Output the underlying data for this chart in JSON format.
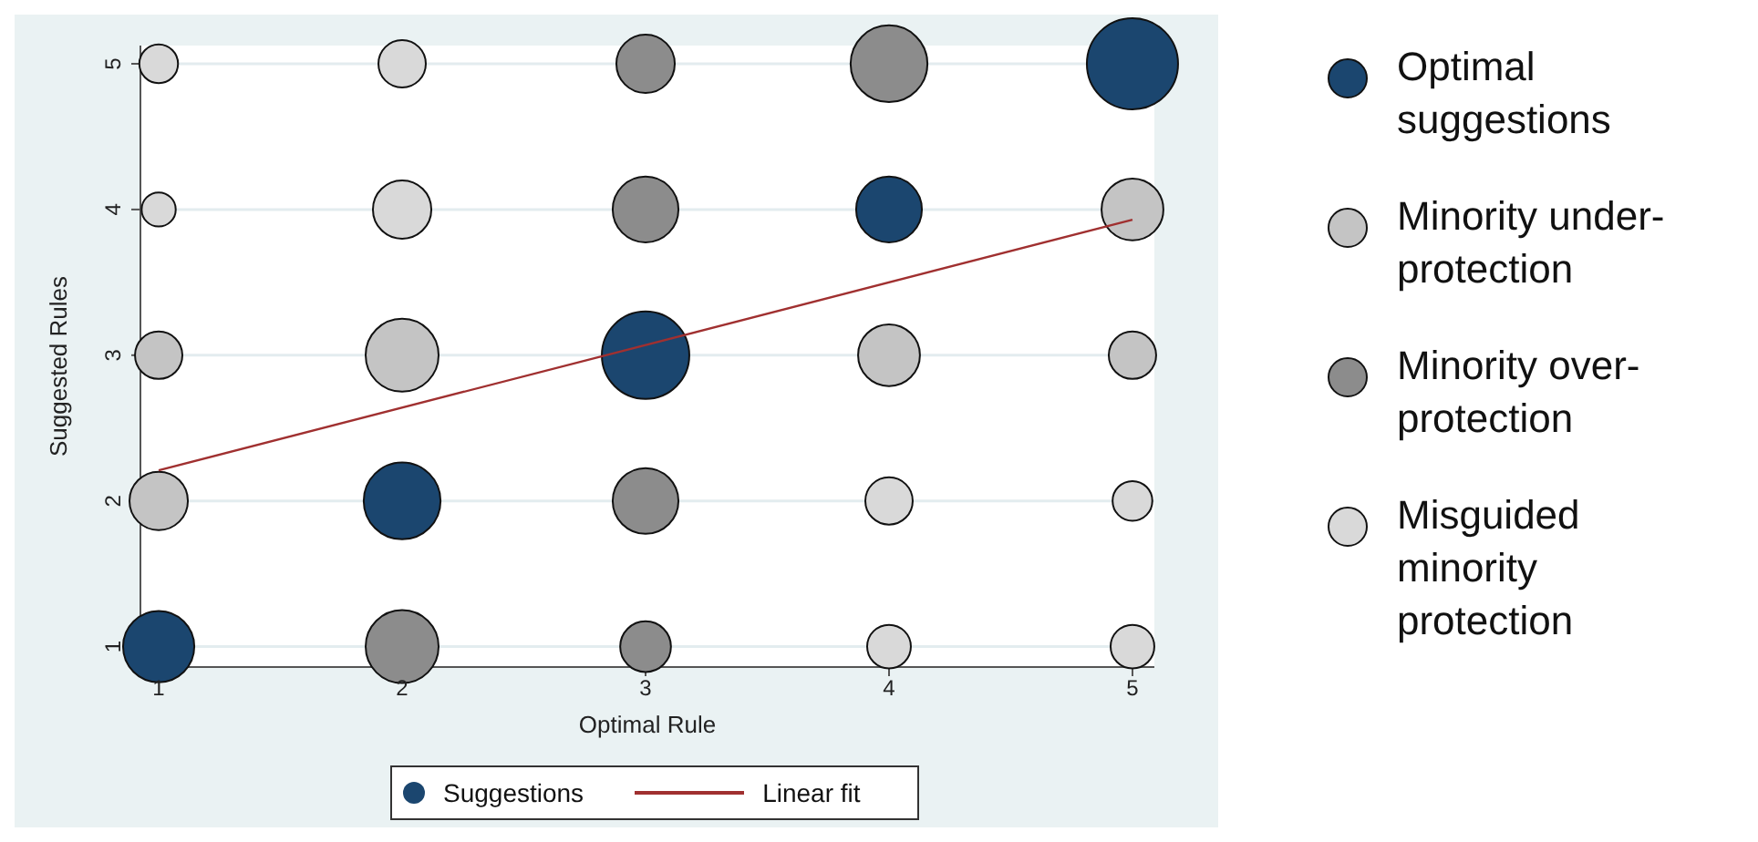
{
  "chart_data": {
    "type": "bubble",
    "xlabel": "Optimal Rule",
    "ylabel": "Suggested Rules",
    "xlim": [
      0.925,
      5.09
    ],
    "ylim": [
      0.86,
      5.125
    ],
    "xticks": [
      1,
      2,
      3,
      4,
      5
    ],
    "yticks": [
      1,
      2,
      3,
      4,
      5
    ],
    "grid": "y",
    "legend": "right",
    "annotations": [
      "Suggestions"
    ],
    "series": [
      {
        "name": "Optimal suggestions",
        "color": "#1b466f",
        "x": [
          1,
          2,
          3,
          4,
          5
        ],
        "values": [
          1,
          2,
          3,
          4,
          5
        ],
        "sizes": [
          0.61,
          0.71,
          0.92,
          0.52,
          1
        ],
        "marker": "circle"
      },
      {
        "name": "Minority under-protection",
        "color": "#c4c4c4",
        "x": [
          1,
          1,
          2,
          4,
          5,
          5
        ],
        "values": [
          2,
          3,
          3,
          3,
          3,
          4
        ],
        "sizes": [
          0.41,
          0.27,
          0.64,
          0.46,
          0.27,
          0.46
        ],
        "marker": "circle"
      },
      {
        "name": "Minority over-protection",
        "color": "#8c8c8c",
        "x": [
          2,
          3,
          3,
          3,
          3,
          4
        ],
        "values": [
          1,
          1,
          2,
          4,
          5,
          5
        ],
        "sizes": [
          0.64,
          0.31,
          0.52,
          0.52,
          0.41,
          0.71
        ],
        "marker": "circle"
      },
      {
        "name": "Misguided minority protection",
        "color": "#d9d9d9",
        "x": [
          1,
          1,
          2,
          2,
          4,
          5,
          4,
          5
        ],
        "values": [
          4,
          5,
          4,
          5,
          1,
          1,
          2,
          2
        ],
        "sizes": [
          0.14,
          0.18,
          0.41,
          0.27,
          0.23,
          0.23,
          0.27,
          0.19
        ],
        "marker": "circle"
      },
      {
        "name": "Linear fit",
        "type": "line",
        "color": "#a03030",
        "x": [
          1,
          5
        ],
        "values": [
          2.21,
          3.93
        ],
        "marker": "none"
      }
    ]
  }
}
